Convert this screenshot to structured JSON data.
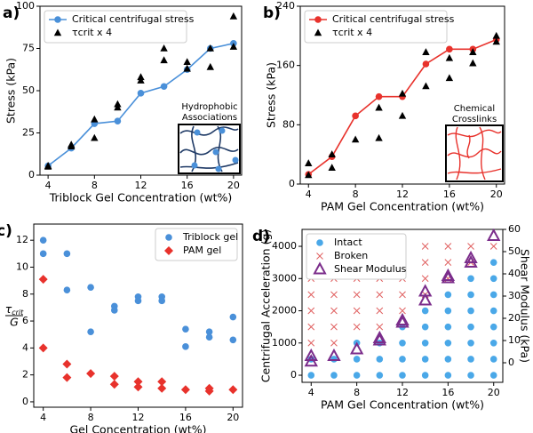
{
  "chart_data": [
    {
      "type": "line",
      "panel_label": "a)",
      "xlabel": "Triblock Gel Concentration (wt%)",
      "ylabel": "Stress (kPa)",
      "xlim": [
        3.3,
        20.7
      ],
      "xticks": [
        4,
        8,
        12,
        16,
        20
      ],
      "ylim": [
        0,
        100
      ],
      "yticks": [
        0,
        25,
        50,
        75,
        100
      ],
      "legend": "upper left",
      "annotations": [
        "Hydrophobic",
        "Associations"
      ],
      "series": [
        {
          "name": "Critical centrifugal stress",
          "color": "#4a90d9",
          "marker": "circle",
          "line": true,
          "x": [
            4,
            6,
            8,
            10,
            12,
            14,
            16,
            18,
            20
          ],
          "y": [
            5.5,
            16,
            30.5,
            32,
            48.5,
            52.5,
            62.5,
            75,
            78
          ]
        },
        {
          "name": "τcrit x 4",
          "color": "#000000",
          "marker": "triangle",
          "line": false,
          "x": [
            4,
            4,
            6,
            6,
            8,
            8,
            10,
            10,
            12,
            12,
            14,
            14,
            16,
            16,
            18,
            18,
            20,
            20
          ],
          "y": [
            5,
            5.5,
            17,
            18,
            22,
            33,
            40,
            42,
            56,
            58,
            68,
            75,
            63,
            67,
            64,
            75,
            76,
            94
          ]
        }
      ]
    },
    {
      "type": "line",
      "panel_label": "b)",
      "xlabel": "PAM Gel Concentration (wt%)",
      "ylabel": "Stress (kPa)",
      "xlim": [
        3.3,
        20.7
      ],
      "xticks": [
        4,
        8,
        12,
        16,
        20
      ],
      "ylim": [
        0,
        240
      ],
      "yticks": [
        0,
        80,
        160,
        240
      ],
      "legend": "upper left",
      "annotations": [
        "Chemical",
        "Crosslinks"
      ],
      "series": [
        {
          "name": "Critical centrifugal stress",
          "color": "#e8322c",
          "marker": "circle",
          "line": true,
          "x": [
            4,
            6,
            8,
            10,
            12,
            14,
            16,
            18,
            20
          ],
          "y": [
            13,
            37,
            92,
            118,
            118,
            162,
            182,
            182,
            195
          ]
        },
        {
          "name": "τcrit x 4",
          "color": "#000000",
          "marker": "triangle",
          "line": false,
          "x": [
            4,
            4,
            6,
            6,
            8,
            10,
            10,
            12,
            12,
            14,
            14,
            16,
            16,
            18,
            18,
            20,
            20
          ],
          "y": [
            12,
            28,
            22,
            40,
            60,
            62,
            103,
            92,
            122,
            132,
            178,
            143,
            170,
            163,
            178,
            192,
            200
          ]
        }
      ]
    },
    {
      "type": "scatter",
      "panel_label": "c)",
      "xlabel": "Gel Concentration (wt%)",
      "ylabel": {
        "numerator": "τ",
        "numerator_subscript": "crit",
        "denominator": "G"
      },
      "xlim": [
        3.2,
        20.8
      ],
      "xticks": [
        4,
        8,
        12,
        16,
        20
      ],
      "ylim": [
        -0.4,
        13.2
      ],
      "yticks": [
        0,
        2,
        4,
        6,
        8,
        10,
        12
      ],
      "legend": "upper right",
      "series": [
        {
          "name": "Triblock gel",
          "color": "#4a90d9",
          "marker": "circle",
          "line": false,
          "x": [
            4,
            4,
            6,
            6,
            8,
            8,
            10,
            10,
            12,
            12,
            14,
            14,
            16,
            16,
            18,
            18,
            20,
            20
          ],
          "y": [
            11,
            12,
            8.3,
            11,
            5.2,
            8.5,
            6.8,
            7.1,
            7.5,
            7.8,
            7.5,
            7.8,
            4.1,
            5.4,
            4.8,
            5.2,
            4.6,
            6.3
          ]
        },
        {
          "name": "PAM gel",
          "color": "#e8322c",
          "marker": "diamond",
          "line": false,
          "x": [
            4,
            4,
            6,
            6,
            8,
            10,
            10,
            12,
            12,
            14,
            14,
            16,
            18,
            18,
            20
          ],
          "y": [
            4,
            9.1,
            1.8,
            2.8,
            2.1,
            1.3,
            1.9,
            1.1,
            1.5,
            1.0,
            1.5,
            0.9,
            0.8,
            1.0,
            0.9
          ]
        }
      ]
    },
    {
      "type": "scatter",
      "panel_label": "d)",
      "xlabel": "PAM Gel Concentration (wt%)",
      "ylabel": "Centrifugal Acceleration (g)",
      "y2label": "Shear Modulus (kPa)",
      "xlim": [
        3.2,
        20.8
      ],
      "xticks": [
        4,
        8,
        12,
        16,
        20
      ],
      "ylim": [
        -220,
        4525
      ],
      "yticks": [
        0,
        1000,
        2000,
        3000,
        4000
      ],
      "y2lim": [
        -8.8,
        60
      ],
      "y2ticks": [
        0,
        10,
        20,
        30,
        40,
        50,
        60
      ],
      "legend": "upper left",
      "series": [
        {
          "name": "Intact",
          "color": "#4aa8e8",
          "marker": "circle",
          "line": false,
          "x": [
            4,
            4,
            6,
            6,
            8,
            8,
            8,
            10,
            10,
            10,
            12,
            12,
            12,
            12,
            14,
            14,
            14,
            14,
            14,
            16,
            16,
            16,
            16,
            16,
            16,
            18,
            18,
            18,
            18,
            18,
            18,
            18,
            20,
            20,
            20,
            20,
            20,
            20,
            20,
            20
          ],
          "y": [
            0,
            500,
            0,
            500,
            0,
            500,
            1000,
            0,
            500,
            1000,
            0,
            500,
            1000,
            1500,
            0,
            500,
            1000,
            1500,
            2000,
            0,
            500,
            1000,
            1500,
            2000,
            2500,
            0,
            500,
            1000,
            1500,
            2000,
            2500,
            3000,
            0,
            500,
            1000,
            1500,
            2000,
            2500,
            3000,
            3500
          ]
        },
        {
          "name": "Broken",
          "color": "#e06060",
          "marker": "x",
          "line": false,
          "x": [
            4,
            4,
            4,
            4,
            4,
            6,
            6,
            6,
            6,
            6,
            8,
            8,
            8,
            8,
            10,
            10,
            10,
            10,
            12,
            12,
            12,
            12,
            12,
            14,
            14,
            14,
            14,
            16,
            16,
            16,
            18,
            18,
            20
          ],
          "y": [
            1000,
            1500,
            2000,
            2500,
            3000,
            1000,
            1500,
            2000,
            2500,
            3000,
            1500,
            2000,
            2500,
            3000,
            1500,
            2000,
            2500,
            3000,
            2000,
            2500,
            3000,
            3500,
            4000,
            2500,
            3000,
            3500,
            4000,
            3000,
            3500,
            4000,
            3500,
            4000,
            4000
          ]
        },
        {
          "name": "Shear Modulus",
          "color": "#7b2d8b",
          "marker": "hollow-triangle",
          "line": false,
          "axis": "y2",
          "x": [
            4,
            4,
            6,
            8,
            10,
            10,
            12,
            12,
            14,
            14,
            16,
            16,
            18,
            18,
            20
          ],
          "y": [
            0.5,
            3,
            3,
            6,
            10,
            11,
            18,
            19,
            28,
            32,
            38,
            39,
            45,
            47,
            57
          ]
        }
      ]
    }
  ]
}
